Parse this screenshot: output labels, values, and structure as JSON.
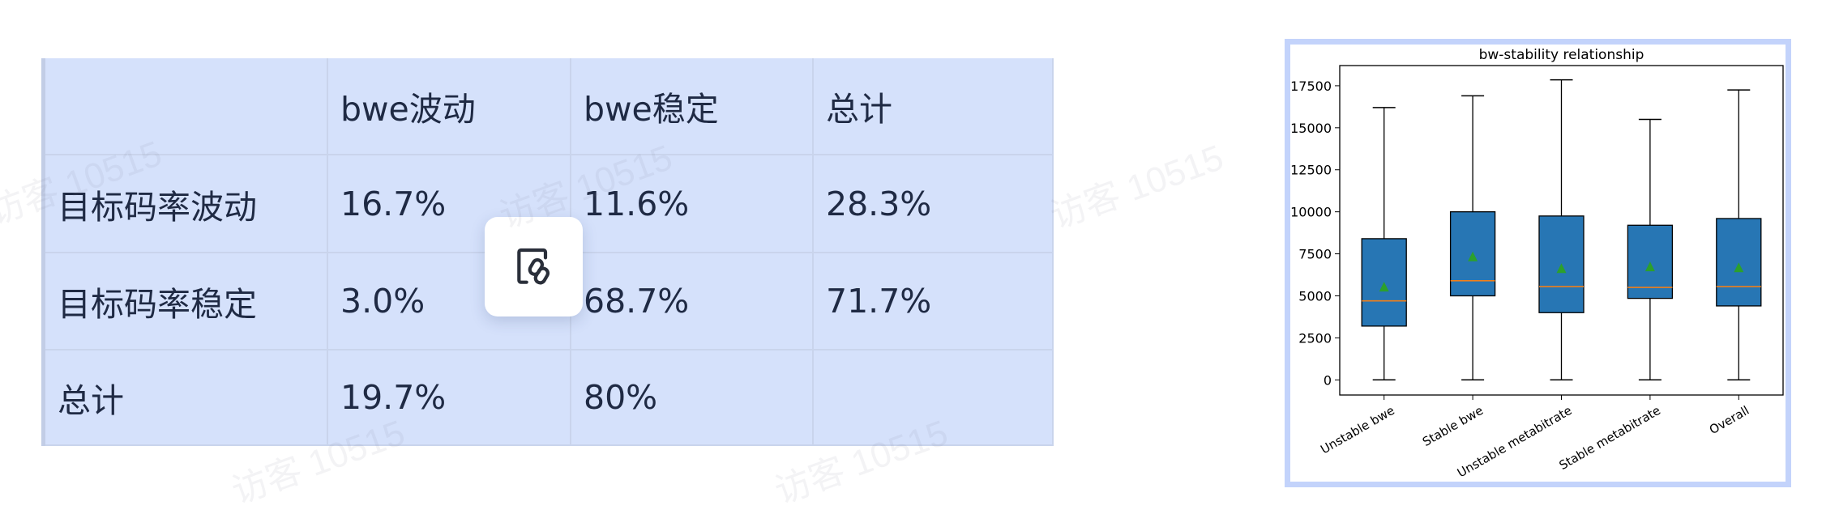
{
  "table": {
    "headers": [
      "",
      "bwe波动",
      "bwe稳定",
      "总计"
    ],
    "rows": [
      [
        "目标码率波动",
        "16.7%",
        "11.6%",
        "28.3%"
      ],
      [
        "目标码率稳定",
        "3.0%",
        "68.7%",
        "71.7%"
      ],
      [
        "总计",
        "19.7%",
        "80%",
        ""
      ]
    ],
    "background": "#d5e1fb"
  },
  "link_button": {
    "icon": "link-icon"
  },
  "watermark": "访客 10515",
  "chart_data": {
    "type": "box",
    "title": "bw-stability relationship",
    "xlabel": "",
    "ylabel": "",
    "categories": [
      "Unstable bwe",
      "Stable bwe",
      "Unstable metabitrate",
      "Stable metabitrate",
      "Overall"
    ],
    "series": [
      {
        "min": 0,
        "q1": 3200,
        "median": 4700,
        "q3": 8400,
        "max": 16200,
        "mean": 5500
      },
      {
        "min": 0,
        "q1": 5000,
        "median": 5900,
        "q3": 10000,
        "max": 16900,
        "mean": 7300
      },
      {
        "min": 0,
        "q1": 4000,
        "median": 5550,
        "q3": 9750,
        "max": 17850,
        "mean": 6600
      },
      {
        "min": 0,
        "q1": 4850,
        "median": 5500,
        "q3": 9200,
        "max": 15500,
        "mean": 6700
      },
      {
        "min": 0,
        "q1": 4400,
        "median": 5550,
        "q3": 9600,
        "max": 17250,
        "mean": 6650
      }
    ],
    "yticks": [
      "0",
      "2500",
      "5000",
      "7500",
      "10000",
      "12500",
      "15000",
      "17500"
    ],
    "ylim": [
      -900,
      18700
    ],
    "grid": false,
    "colors": {
      "box": "#2776b4",
      "median": "#f07f1a",
      "mean": "#2ca02c",
      "frame_border": "#c3d3fb"
    }
  }
}
